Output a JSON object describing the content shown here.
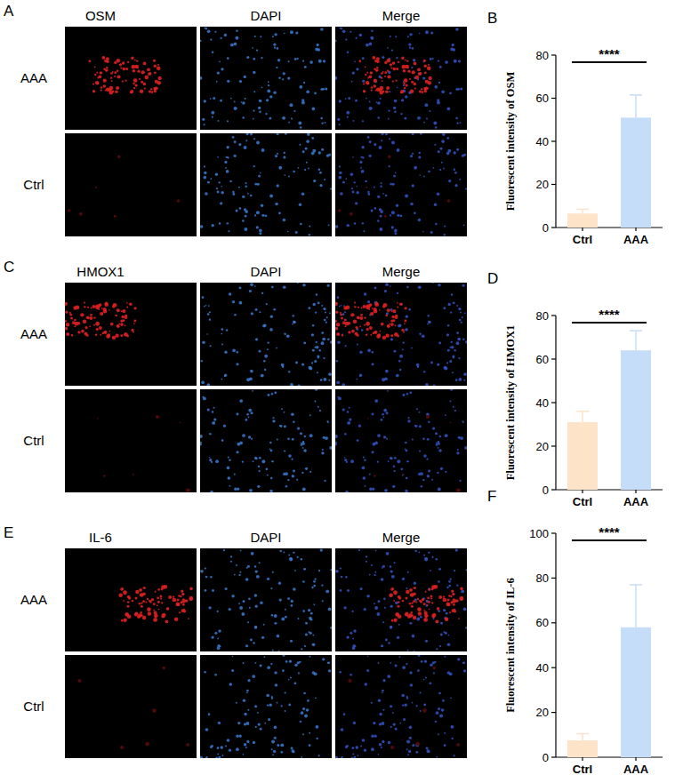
{
  "image_panels": [
    {
      "letter": "A",
      "columns": [
        "OSM",
        "DAPI",
        "Merge"
      ],
      "rows": [
        "AAA",
        "Ctrl"
      ]
    },
    {
      "letter": "C",
      "columns": [
        "HMOX1",
        "DAPI",
        "Merge"
      ],
      "rows": [
        "AAA",
        "Ctrl"
      ]
    },
    {
      "letter": "E",
      "columns": [
        "IL-6",
        "DAPI",
        "Merge"
      ],
      "rows": [
        "AAA",
        "Ctrl"
      ]
    }
  ],
  "chart_data": [
    {
      "type": "bar",
      "panel": "B",
      "y_label": "Fluorescent intensity of OSM",
      "categories": [
        "Ctrl",
        "AAA"
      ],
      "values": [
        6.5,
        51
      ],
      "errors": [
        2,
        10.5
      ],
      "colors": [
        "#fde3c8",
        "#c5ddf8"
      ],
      "ylim": [
        0,
        80
      ],
      "yticks": [
        0,
        20,
        40,
        60,
        80
      ],
      "significance": "****"
    },
    {
      "type": "bar",
      "panel": "D",
      "y_label": "Fluorescent intensity of HMOX1",
      "categories": [
        "Ctrl",
        "AAA"
      ],
      "values": [
        31,
        64
      ],
      "errors": [
        5,
        9
      ],
      "colors": [
        "#fde3c8",
        "#c5ddf8"
      ],
      "ylim": [
        0,
        80
      ],
      "yticks": [
        0,
        20,
        40,
        60,
        80
      ],
      "significance": "****"
    },
    {
      "type": "bar",
      "panel": "F",
      "y_label": "Fluorescent intensity of IL-6",
      "categories": [
        "Ctrl",
        "AAA"
      ],
      "values": [
        7.5,
        58
      ],
      "errors": [
        3,
        19
      ],
      "colors": [
        "#fde3c8",
        "#c5ddf8"
      ],
      "ylim": [
        0,
        100
      ],
      "yticks": [
        0,
        20,
        40,
        60,
        80,
        100
      ],
      "significance": "****"
    }
  ]
}
